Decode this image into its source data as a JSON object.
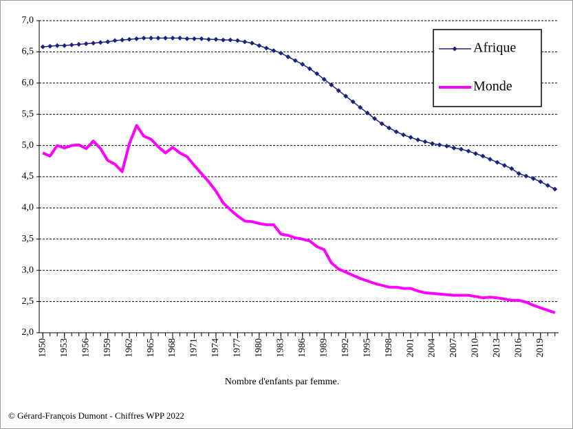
{
  "chart_data": {
    "type": "line",
    "x_label": "Nombre d'enfants par femme.",
    "source": "© Gérard-François Dumont - Chiffres WPP 2022",
    "x": [
      1950,
      1951,
      1952,
      1953,
      1954,
      1955,
      1956,
      1957,
      1958,
      1959,
      1960,
      1961,
      1962,
      1963,
      1964,
      1965,
      1966,
      1967,
      1968,
      1969,
      1970,
      1971,
      1972,
      1973,
      1974,
      1975,
      1976,
      1977,
      1978,
      1979,
      1980,
      1981,
      1982,
      1983,
      1984,
      1985,
      1986,
      1987,
      1988,
      1989,
      1990,
      1991,
      1992,
      1993,
      1994,
      1995,
      1996,
      1997,
      1998,
      1999,
      2000,
      2001,
      2002,
      2003,
      2004,
      2005,
      2006,
      2007,
      2008,
      2009,
      2010,
      2011,
      2012,
      2013,
      2014,
      2015,
      2016,
      2017,
      2018,
      2019,
      2020,
      2021
    ],
    "series": [
      {
        "name": "Afrique",
        "color": "#1a237e",
        "marker": "diamond",
        "values": [
          6.58,
          6.59,
          6.6,
          6.6,
          6.61,
          6.62,
          6.63,
          6.64,
          6.65,
          6.66,
          6.68,
          6.69,
          6.7,
          6.71,
          6.72,
          6.72,
          6.72,
          6.72,
          6.72,
          6.72,
          6.71,
          6.71,
          6.71,
          6.7,
          6.7,
          6.69,
          6.69,
          6.68,
          6.66,
          6.64,
          6.6,
          6.56,
          6.52,
          6.48,
          6.42,
          6.36,
          6.3,
          6.23,
          6.15,
          6.06,
          5.97,
          5.88,
          5.79,
          5.7,
          5.61,
          5.52,
          5.43,
          5.35,
          5.28,
          5.22,
          5.17,
          5.13,
          5.09,
          5.06,
          5.03,
          5.01,
          4.99,
          4.96,
          4.94,
          4.91,
          4.87,
          4.83,
          4.78,
          4.73,
          4.68,
          4.63,
          4.55,
          4.51,
          4.47,
          4.42,
          4.36,
          4.3
        ]
      },
      {
        "name": "Monde",
        "color": "#ff00ff",
        "values": [
          4.88,
          4.83,
          5.0,
          4.96,
          5.0,
          5.01,
          4.95,
          5.07,
          4.95,
          4.76,
          4.7,
          4.58,
          5.03,
          5.32,
          5.15,
          5.1,
          4.98,
          4.88,
          4.97,
          4.88,
          4.82,
          4.68,
          4.55,
          4.42,
          4.27,
          4.08,
          3.97,
          3.87,
          3.79,
          3.78,
          3.75,
          3.73,
          3.73,
          3.58,
          3.56,
          3.52,
          3.5,
          3.47,
          3.38,
          3.33,
          3.12,
          3.02,
          2.97,
          2.92,
          2.87,
          2.83,
          2.79,
          2.76,
          2.73,
          2.73,
          2.71,
          2.71,
          2.67,
          2.64,
          2.63,
          2.62,
          2.61,
          2.6,
          2.6,
          2.6,
          2.58,
          2.56,
          2.57,
          2.56,
          2.54,
          2.52,
          2.52,
          2.49,
          2.44,
          2.4,
          2.36,
          2.32
        ]
      }
    ],
    "xlim": [
      1949.5,
      2021.5
    ],
    "xticks": [
      1950,
      1953,
      1956,
      1959,
      1962,
      1965,
      1968,
      1971,
      1974,
      1977,
      1980,
      1983,
      1986,
      1989,
      1992,
      1995,
      1998,
      2001,
      2004,
      2007,
      2010,
      2013,
      2016,
      2019
    ],
    "ylim": [
      2,
      7
    ],
    "yticks": [
      {
        "value": 2,
        "label": "2,0"
      },
      {
        "value": 2.5,
        "label": "2,5"
      },
      {
        "value": 3,
        "label": "3,0"
      },
      {
        "value": 3.5,
        "label": "3,5"
      },
      {
        "value": 4,
        "label": "4,0"
      },
      {
        "value": 4.5,
        "label": "4,5"
      },
      {
        "value": 5,
        "label": "5,0"
      },
      {
        "value": 5.5,
        "label": "5,5"
      },
      {
        "value": 6,
        "label": "6,0"
      },
      {
        "value": 6.5,
        "label": "6,5"
      },
      {
        "value": 7,
        "label": "7,0"
      }
    ],
    "grid": true,
    "legend": "upper right"
  }
}
